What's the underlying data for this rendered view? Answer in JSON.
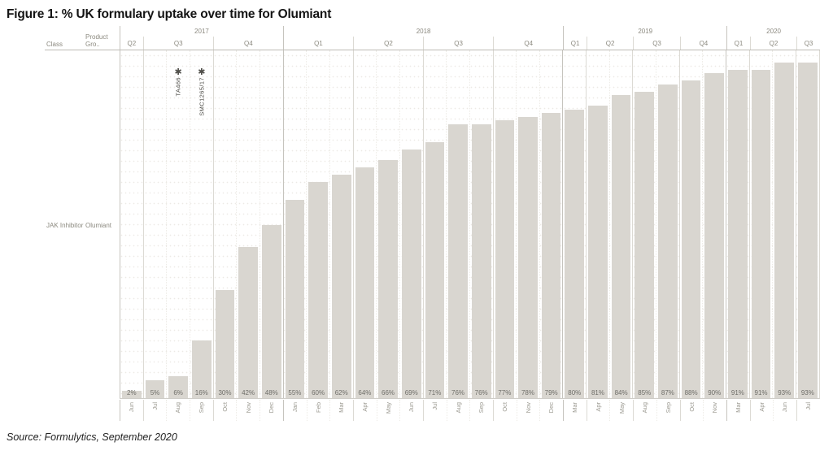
{
  "figure": {
    "title": "Figure 1: % UK formulary uptake over time for Olumiant",
    "source": "Source: Formulytics, September 2020"
  },
  "table_headers": {
    "class": "Class",
    "product": "Product Gro.."
  },
  "row_labels": {
    "class": "JAK Inhibitor",
    "product": "Olumiant"
  },
  "colors": {
    "bar": "#d9d6d0",
    "value_text": "#6e6d68",
    "axis_text": "#9a988f",
    "header_text": "#8b897f",
    "title_text": "#141414"
  },
  "chart_data": {
    "type": "bar",
    "title": "Figure 1: % UK formulary uptake over time for Olumiant",
    "ylabel": "% UK formulary uptake",
    "unit": "%",
    "ylim": [
      0,
      100
    ],
    "grid": "dotted-horizontal",
    "legend": "none",
    "annotations": [
      {
        "col_index": 2,
        "month": "Aug 2017",
        "text": "TA466",
        "marker": "✱"
      },
      {
        "col_index": 3,
        "month": "Sep 2017",
        "text": "SMC1265/17",
        "marker": "✱"
      }
    ],
    "years": [
      {
        "label": "2017",
        "quarters": [
          {
            "label": "Q2",
            "months": [
              {
                "m": "Jun",
                "v": 2
              }
            ]
          },
          {
            "label": "Q3",
            "months": [
              {
                "m": "Jul",
                "v": 5
              },
              {
                "m": "Aug",
                "v": 6
              },
              {
                "m": "Sep",
                "v": 16
              }
            ]
          },
          {
            "label": "Q4",
            "months": [
              {
                "m": "Oct",
                "v": 30
              },
              {
                "m": "Nov",
                "v": 42
              },
              {
                "m": "Dec",
                "v": 48
              }
            ]
          }
        ]
      },
      {
        "label": "2018",
        "quarters": [
          {
            "label": "Q1",
            "months": [
              {
                "m": "Jan",
                "v": 55
              },
              {
                "m": "Feb",
                "v": 60
              },
              {
                "m": "Mar",
                "v": 62
              }
            ]
          },
          {
            "label": "Q2",
            "months": [
              {
                "m": "Apr",
                "v": 64
              },
              {
                "m": "May",
                "v": 66
              },
              {
                "m": "Jun",
                "v": 69
              }
            ]
          },
          {
            "label": "Q3",
            "months": [
              {
                "m": "Jul",
                "v": 71
              },
              {
                "m": "Aug",
                "v": 76
              },
              {
                "m": "Sep",
                "v": 76
              }
            ]
          },
          {
            "label": "Q4",
            "months": [
              {
                "m": "Oct",
                "v": 77
              },
              {
                "m": "Nov",
                "v": 78
              },
              {
                "m": "Dec",
                "v": 79
              }
            ]
          }
        ]
      },
      {
        "label": "2019",
        "quarters": [
          {
            "label": "Q1",
            "months": [
              {
                "m": "Mar",
                "v": 80
              }
            ]
          },
          {
            "label": "Q2",
            "months": [
              {
                "m": "Apr",
                "v": 81
              },
              {
                "m": "May",
                "v": 84
              }
            ]
          },
          {
            "label": "Q3",
            "months": [
              {
                "m": "Aug",
                "v": 85
              },
              {
                "m": "Sep",
                "v": 87
              }
            ]
          },
          {
            "label": "Q4",
            "months": [
              {
                "m": "Oct",
                "v": 88
              },
              {
                "m": "Nov",
                "v": 90
              }
            ]
          }
        ]
      },
      {
        "label": "2020",
        "quarters": [
          {
            "label": "Q1",
            "months": [
              {
                "m": "Mar",
                "v": 91
              }
            ]
          },
          {
            "label": "Q2",
            "months": [
              {
                "m": "Apr",
                "v": 91
              },
              {
                "m": "Jun",
                "v": 93
              }
            ]
          },
          {
            "label": "Q3",
            "months": [
              {
                "m": "Jul",
                "v": 93
              }
            ]
          }
        ]
      }
    ]
  }
}
